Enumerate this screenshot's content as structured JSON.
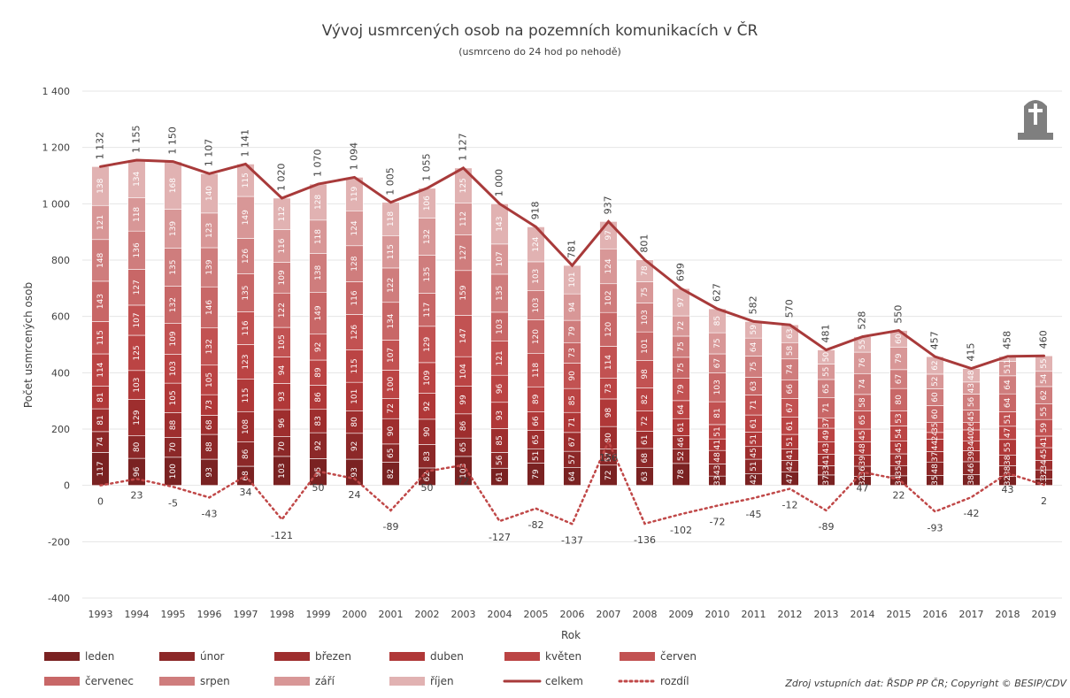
{
  "chart_data": {
    "type": "stacked-bar-line",
    "title": "Vývoj usmrcených osob na pozemních komunikacích v ČR",
    "subtitle": "(usmrceno do 24 hod po nehodě)",
    "x_label": "Rok",
    "y_label": "Počet usmrcených osob",
    "source": "Zdroj vstupních dat: ŘSDP PP ČR; Copyright © BESIP/CDV",
    "categories": [
      "1993",
      "1994",
      "1995",
      "1996",
      "1997",
      "1998",
      "1999",
      "2000",
      "2001",
      "2002",
      "2003",
      "2004",
      "2005",
      "2006",
      "2007",
      "2008",
      "2009",
      "2010",
      "2011",
      "2012",
      "2013",
      "2014",
      "2015",
      "2016",
      "2017",
      "2018",
      "2019"
    ],
    "ylim": [
      -400,
      1400
    ],
    "yticks": [
      -400,
      -200,
      0,
      200,
      400,
      600,
      800,
      {
        "value": 1000,
        "label": "1 000"
      },
      {
        "value": 1200,
        "label": "1 200"
      },
      {
        "value": 1400,
        "label": "1 400"
      }
    ],
    "grid": true,
    "series": [
      {
        "name": "leden",
        "color": "#7a2222",
        "values": [
          117,
          96,
          100,
          93,
          68,
          103,
          95,
          93,
          82,
          62,
          103,
          61,
          79,
          64,
          72,
          63,
          78,
          33,
          42,
          47,
          37,
          32,
          34,
          35,
          38,
          32,
          23
        ]
      },
      {
        "name": "únor",
        "color": "#8c2828",
        "values": [
          74,
          80,
          70,
          88,
          86,
          70,
          92,
          92,
          65,
          83,
          65,
          56,
          51,
          57,
          57,
          68,
          52,
          43,
          51,
          42,
          33,
          36,
          35,
          48,
          46,
          38,
          32
        ]
      },
      {
        "name": "březen",
        "color": "#9e2e2e",
        "values": [
          81,
          129,
          88,
          68,
          108,
          96,
          83,
          80,
          90,
          90,
          86,
          85,
          65,
          67,
          80,
          61,
          46,
          48,
          45,
          41,
          41,
          39,
          43,
          37,
          39,
          38,
          34
        ]
      },
      {
        "name": "duben",
        "color": "#b03838",
        "values": [
          81,
          103,
          105,
          73,
          115,
          93,
          86,
          101,
          72,
          92,
          99,
          93,
          66,
          71,
          98,
          72,
          61,
          41,
          51,
          51,
          43,
          48,
          45,
          44,
          34,
          55,
          45
        ]
      },
      {
        "name": "květen",
        "color": "#bb4444",
        "values": [
          114,
          125,
          103,
          105,
          123,
          94,
          89,
          115,
          100,
          109,
          104,
          96,
          89,
          85,
          73,
          82,
          64,
          51,
          61,
          61,
          49,
          45,
          54,
          24,
          40,
          47,
          41
        ]
      },
      {
        "name": "červen",
        "color": "#c25252",
        "values": [
          115,
          107,
          109,
          132,
          116,
          105,
          92,
          126,
          107,
          129,
          147,
          121,
          118,
          90,
          114,
          98,
          79,
          81,
          71,
          67,
          37,
          65,
          53,
          35,
          26,
          51,
          59
        ]
      },
      {
        "name": "červenec",
        "color": "#c86767",
        "values": [
          143,
          127,
          132,
          146,
          135,
          122,
          149,
          116,
          134,
          117,
          159,
          103,
          120,
          73,
          120,
          101,
          75,
          103,
          63,
          66,
          71,
          58,
          80,
          60,
          45,
          64,
          55
        ]
      },
      {
        "name": "srpen",
        "color": "#cf7d7d",
        "values": [
          148,
          136,
          135,
          139,
          126,
          109,
          138,
          128,
          122,
          135,
          127,
          135,
          103,
          79,
          102,
          103,
          75,
          67,
          75,
          74,
          65,
          74,
          67,
          60,
          56,
          64,
          62
        ]
      },
      {
        "name": "září",
        "color": "#d89797",
        "values": [
          121,
          118,
          139,
          123,
          149,
          116,
          118,
          124,
          115,
          132,
          112,
          107,
          103,
          94,
          124,
          75,
          72,
          75,
          64,
          58,
          55,
          76,
          79,
          52,
          43,
          51,
          54
        ]
      },
      {
        "name": "říjen",
        "color": "#e1b2b2",
        "values": [
          138,
          134,
          168,
          140,
          115,
          112,
          128,
          119,
          118,
          106,
          125,
          143,
          124,
          101,
          97,
          78,
          97,
          85,
          59,
          63,
          50,
          55,
          60,
          62,
          48,
          18,
          55
        ]
      }
    ],
    "lines": [
      {
        "name": "celkem",
        "color": "#a83a3a",
        "dashed": false,
        "values": [
          1132,
          1155,
          1150,
          1107,
          1141,
          1020,
          1070,
          1094,
          1005,
          1055,
          1127,
          1000,
          918,
          781,
          937,
          801,
          699,
          627,
          582,
          570,
          481,
          528,
          550,
          457,
          415,
          458,
          460
        ],
        "value_labels": [
          "1 132",
          "1 155",
          "1 150",
          "1 107",
          "1 141",
          "1 020",
          "1 070",
          "1 094",
          "1 005",
          "1 055",
          "1 127",
          "1 000",
          "918",
          "781",
          "937",
          "801",
          "699",
          "627",
          "582",
          "570",
          "481",
          "528",
          "550",
          "457",
          "415",
          "458",
          "460"
        ]
      },
      {
        "name": "rozdíl",
        "color": "#c04848",
        "dashed": true,
        "values": [
          0,
          23,
          -5,
          -43,
          34,
          -121,
          50,
          24,
          -89,
          50,
          72,
          -127,
          -82,
          -137,
          156,
          -136,
          -102,
          -72,
          -45,
          -12,
          -89,
          47,
          22,
          -93,
          -42,
          43,
          2
        ]
      }
    ]
  }
}
